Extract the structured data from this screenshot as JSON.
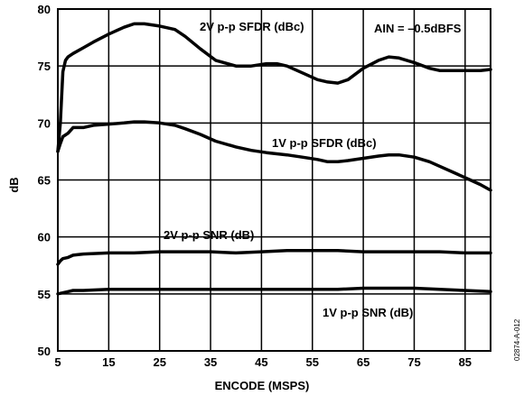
{
  "chart_data": {
    "type": "line",
    "xlabel": "ENCODE (MSPS)",
    "ylabel": "dB",
    "xlim": [
      5,
      90
    ],
    "ylim": [
      50,
      80
    ],
    "x_ticks": [
      5,
      15,
      25,
      35,
      45,
      55,
      65,
      75,
      85
    ],
    "y_ticks": [
      50,
      55,
      60,
      65,
      70,
      75,
      80
    ],
    "grid": true,
    "annotation": "AIN = –0.5dBFS",
    "figure_id": "02874-A-012",
    "series": [
      {
        "name": "2V p-p SFDR (dBc)",
        "x": [
          5,
          5.5,
          6,
          6.5,
          7,
          8,
          10,
          12,
          15,
          18,
          20,
          22,
          25,
          28,
          30,
          33,
          36,
          40,
          43,
          46,
          48,
          50,
          53,
          56,
          58,
          60,
          62,
          65,
          68,
          70,
          72,
          75,
          78,
          80,
          83,
          86,
          88,
          90
        ],
        "y": [
          67.5,
          70,
          74.5,
          75.5,
          75.8,
          76.1,
          76.6,
          77.1,
          77.8,
          78.4,
          78.7,
          78.7,
          78.5,
          78.2,
          77.6,
          76.5,
          75.5,
          75.0,
          75.0,
          75.2,
          75.2,
          75.0,
          74.4,
          73.8,
          73.6,
          73.5,
          73.8,
          74.8,
          75.5,
          75.8,
          75.7,
          75.3,
          74.8,
          74.6,
          74.6,
          74.6,
          74.6,
          74.7
        ]
      },
      {
        "name": "1V p-p SFDR (dBc)",
        "x": [
          5,
          5.5,
          6,
          7,
          8,
          9,
          10,
          12,
          15,
          18,
          20,
          22,
          25,
          28,
          30,
          33,
          36,
          40,
          43,
          46,
          50,
          53,
          56,
          58,
          60,
          62,
          65,
          68,
          70,
          72,
          75,
          78,
          80,
          83,
          86,
          88,
          90
        ],
        "y": [
          67.5,
          68.2,
          68.8,
          69.1,
          69.6,
          69.6,
          69.6,
          69.8,
          69.9,
          70.0,
          70.1,
          70.1,
          70.0,
          69.8,
          69.5,
          69.0,
          68.4,
          67.9,
          67.6,
          67.4,
          67.2,
          67.0,
          66.8,
          66.6,
          66.6,
          66.7,
          66.9,
          67.1,
          67.2,
          67.2,
          67.0,
          66.6,
          66.2,
          65.6,
          65.0,
          64.6,
          64.1
        ]
      },
      {
        "name": "2V p-p SNR (dB)",
        "x": [
          5,
          5.5,
          6,
          7,
          8,
          10,
          15,
          20,
          25,
          30,
          35,
          40,
          45,
          50,
          55,
          60,
          65,
          70,
          75,
          80,
          85,
          90
        ],
        "y": [
          57.6,
          57.9,
          58.1,
          58.2,
          58.4,
          58.5,
          58.6,
          58.6,
          58.7,
          58.7,
          58.7,
          58.6,
          58.7,
          58.8,
          58.8,
          58.8,
          58.7,
          58.7,
          58.7,
          58.7,
          58.6,
          58.6
        ]
      },
      {
        "name": "1V p-p SNR (dB)",
        "x": [
          5,
          6,
          7,
          8,
          10,
          15,
          20,
          25,
          30,
          35,
          40,
          45,
          50,
          55,
          60,
          65,
          70,
          75,
          80,
          85,
          90
        ],
        "y": [
          55.0,
          55.1,
          55.2,
          55.3,
          55.3,
          55.4,
          55.4,
          55.4,
          55.4,
          55.4,
          55.4,
          55.4,
          55.4,
          55.4,
          55.4,
          55.5,
          55.5,
          55.5,
          55.4,
          55.3,
          55.2
        ]
      }
    ]
  }
}
